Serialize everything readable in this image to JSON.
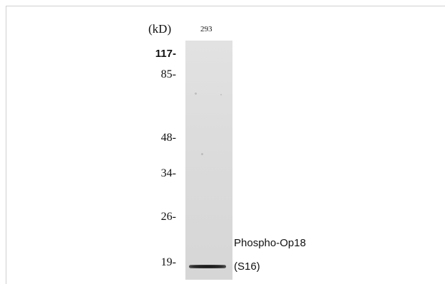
{
  "unit_label": "(kD)",
  "lane_label": "293",
  "markers": [
    "117-",
    "85-",
    "48-",
    "34-",
    "26-",
    "19-"
  ],
  "protein": {
    "line1": "Phospho-Op18",
    "line2": "(S16)"
  }
}
